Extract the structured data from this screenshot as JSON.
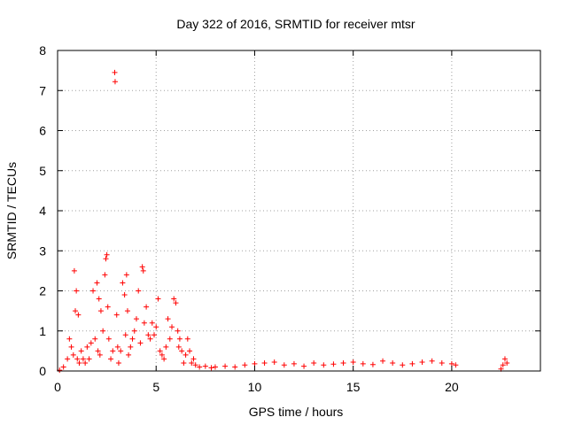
{
  "chart_data": {
    "type": "scatter",
    "title": "Day 322 of 2016, SRMTID for receiver mtsr",
    "xlabel": "GPS time / hours",
    "ylabel": "SRMTID / TECUs",
    "xlim": [
      0,
      24.5
    ],
    "ylim": [
      0,
      8
    ],
    "xticks": [
      0,
      5,
      10,
      15,
      20
    ],
    "yticks": [
      0,
      1,
      2,
      3,
      4,
      5,
      6,
      7,
      8
    ],
    "grid": true,
    "marker": "+",
    "color": "#ff0000",
    "series": [
      {
        "name": "SRMTID",
        "x": [
          0.1,
          0.3,
          0.5,
          0.6,
          0.7,
          0.8,
          0.85,
          0.9,
          0.95,
          1.0,
          1.05,
          1.1,
          1.2,
          1.3,
          1.4,
          1.5,
          1.6,
          1.7,
          1.8,
          1.9,
          2.0,
          2.05,
          2.1,
          2.15,
          2.2,
          2.3,
          2.4,
          2.45,
          2.5,
          2.55,
          2.6,
          2.7,
          2.8,
          2.9,
          2.92,
          3.0,
          3.05,
          3.1,
          3.2,
          3.3,
          3.4,
          3.45,
          3.5,
          3.55,
          3.6,
          3.7,
          3.8,
          3.9,
          4.0,
          4.1,
          4.2,
          4.3,
          4.35,
          4.4,
          4.5,
          4.6,
          4.7,
          4.8,
          4.9,
          5.0,
          5.1,
          5.2,
          5.3,
          5.4,
          5.5,
          5.6,
          5.7,
          5.8,
          5.9,
          6.0,
          6.1,
          6.15,
          6.2,
          6.3,
          6.4,
          6.5,
          6.6,
          6.7,
          6.8,
          6.9,
          7.0,
          7.2,
          7.5,
          7.8,
          8.0,
          8.5,
          9.0,
          9.5,
          10.0,
          10.5,
          11.0,
          11.5,
          12.0,
          12.5,
          13.0,
          13.5,
          14.0,
          14.5,
          15.0,
          15.5,
          16.0,
          16.5,
          17.0,
          17.5,
          18.0,
          18.5,
          19.0,
          19.5,
          20.0,
          20.2,
          22.5,
          22.6,
          22.7,
          22.8
        ],
        "y": [
          0.02,
          0.1,
          0.3,
          0.8,
          0.6,
          0.4,
          2.5,
          1.5,
          2.0,
          0.3,
          1.4,
          0.2,
          0.5,
          0.3,
          0.2,
          0.6,
          0.3,
          0.7,
          2.0,
          0.8,
          2.2,
          0.5,
          1.8,
          0.4,
          1.5,
          1.0,
          2.4,
          2.8,
          2.9,
          1.6,
          0.8,
          0.3,
          0.5,
          7.45,
          7.22,
          1.4,
          0.6,
          0.2,
          0.5,
          2.2,
          1.9,
          0.9,
          2.4,
          1.5,
          0.4,
          0.6,
          0.8,
          1.0,
          1.3,
          2.0,
          0.7,
          2.6,
          2.5,
          1.2,
          1.6,
          0.9,
          0.8,
          1.2,
          0.9,
          1.1,
          1.8,
          0.5,
          0.4,
          0.3,
          0.6,
          1.3,
          0.8,
          1.1,
          1.8,
          1.7,
          1.0,
          0.6,
          0.8,
          0.5,
          0.2,
          0.4,
          0.8,
          0.5,
          0.2,
          0.3,
          0.15,
          0.1,
          0.12,
          0.08,
          0.1,
          0.12,
          0.1,
          0.15,
          0.18,
          0.2,
          0.22,
          0.15,
          0.18,
          0.12,
          0.2,
          0.15,
          0.17,
          0.2,
          0.22,
          0.18,
          0.16,
          0.25,
          0.2,
          0.15,
          0.18,
          0.22,
          0.25,
          0.2,
          0.18,
          0.15,
          0.05,
          0.15,
          0.3,
          0.2
        ]
      }
    ]
  }
}
